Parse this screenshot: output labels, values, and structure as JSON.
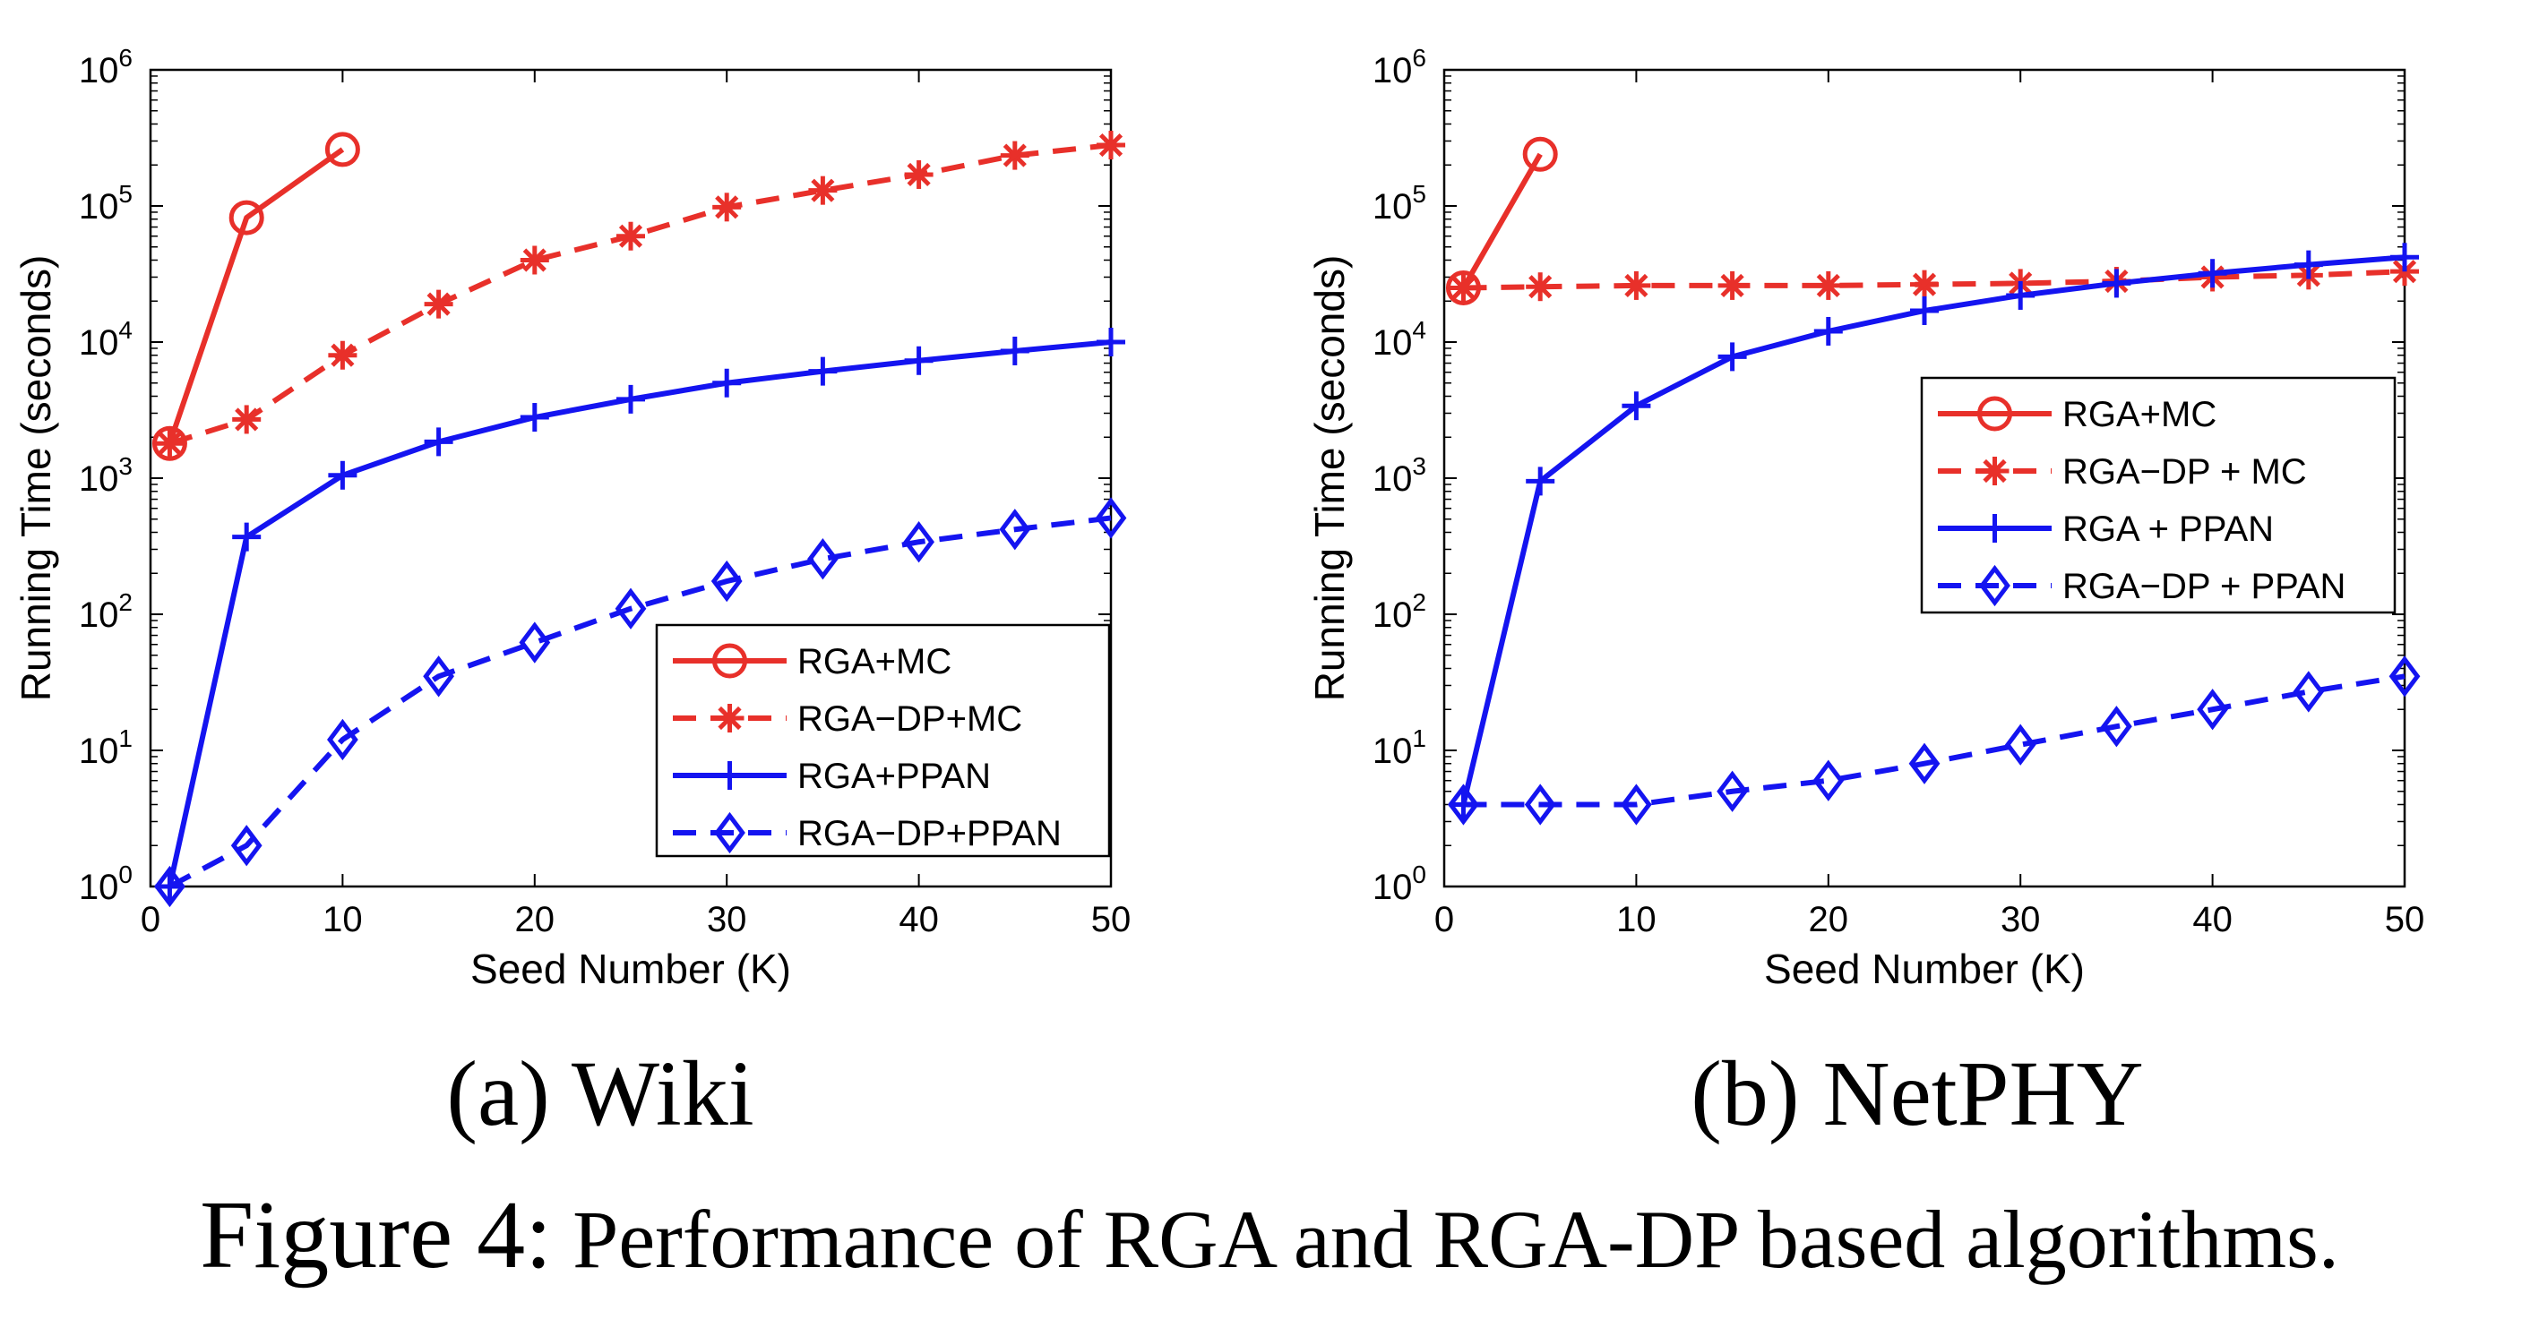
{
  "figure": {
    "caption_label": "Figure 4:",
    "caption_text": "Performance of RGA and RGA-DP based algorithms."
  },
  "colors": {
    "red": "#e8302a",
    "blue": "#1414f0"
  },
  "chart_data": [
    {
      "type": "line",
      "subcaption": "(a)  Wiki",
      "xlabel": "Seed Number (K)",
      "ylabel": "Running Time (seconds)",
      "xlim": [
        0,
        50
      ],
      "ylim": [
        1,
        1000000
      ],
      "y_scale": "log",
      "x_ticks": [
        0,
        10,
        20,
        30,
        40,
        50
      ],
      "y_ticks": [
        1,
        10,
        100,
        1000,
        10000,
        100000,
        1000000
      ],
      "legend_position": "lower-right",
      "grid": false,
      "series": [
        {
          "name": "RGA+MC",
          "color": "#e8302a",
          "dash": "solid",
          "marker": "circle",
          "x": [
            1,
            5,
            10
          ],
          "y": [
            1800,
            82000,
            260000
          ]
        },
        {
          "name": "RGA−DP+MC",
          "color": "#e8302a",
          "dash": "dashed",
          "marker": "asterisk",
          "x": [
            1,
            5,
            10,
            15,
            20,
            25,
            30,
            35,
            40,
            45,
            50
          ],
          "y": [
            1800,
            2700,
            8000,
            19000,
            40000,
            60000,
            98000,
            130000,
            170000,
            235000,
            280000
          ]
        },
        {
          "name": "RGA+PPAN",
          "color": "#1414f0",
          "dash": "solid",
          "marker": "plus",
          "x": [
            1,
            5,
            10,
            15,
            20,
            25,
            30,
            35,
            40,
            45,
            50
          ],
          "y": [
            1,
            370,
            1050,
            1850,
            2800,
            3800,
            5000,
            6100,
            7300,
            8600,
            10000
          ]
        },
        {
          "name": "RGA−DP+PPAN",
          "color": "#1414f0",
          "dash": "dashed",
          "marker": "diamond",
          "x": [
            1,
            5,
            10,
            15,
            20,
            25,
            30,
            35,
            40,
            45,
            50
          ],
          "y": [
            1,
            2,
            12,
            35,
            62,
            110,
            175,
            255,
            340,
            420,
            510
          ]
        }
      ]
    },
    {
      "type": "line",
      "subcaption": "(b)  NetPHY",
      "xlabel": "Seed Number (K)",
      "ylabel": "Running Time (seconds)",
      "xlim": [
        0,
        50
      ],
      "ylim": [
        1,
        1000000
      ],
      "y_scale": "log",
      "x_ticks": [
        0,
        10,
        20,
        30,
        40,
        50
      ],
      "y_ticks": [
        1,
        10,
        100,
        1000,
        10000,
        100000,
        1000000
      ],
      "legend_position": "center-right",
      "grid": false,
      "series": [
        {
          "name": "RGA+MC",
          "color": "#e8302a",
          "dash": "solid",
          "marker": "circle",
          "x": [
            1,
            5
          ],
          "y": [
            25000,
            240000
          ]
        },
        {
          "name": "RGA−DP + MC",
          "color": "#e8302a",
          "dash": "dashed",
          "marker": "asterisk",
          "x": [
            1,
            5,
            10,
            15,
            20,
            25,
            30,
            35,
            40,
            45,
            50
          ],
          "y": [
            25000,
            25500,
            26000,
            26000,
            26000,
            26500,
            27000,
            28000,
            30000,
            31000,
            33000
          ]
        },
        {
          "name": "RGA + PPAN",
          "color": "#1414f0",
          "dash": "solid",
          "marker": "plus",
          "x": [
            1,
            5,
            10,
            15,
            20,
            25,
            30,
            35,
            40,
            45,
            50
          ],
          "y": [
            4,
            950,
            3400,
            7800,
            12000,
            17000,
            22000,
            27000,
            32000,
            37000,
            42000
          ]
        },
        {
          "name": "RGA−DP + PPAN",
          "color": "#1414f0",
          "dash": "dashed",
          "marker": "diamond",
          "x": [
            1,
            5,
            10,
            15,
            20,
            25,
            30,
            35,
            40,
            45,
            50
          ],
          "y": [
            4,
            4,
            4,
            5,
            6,
            8,
            11,
            15,
            20,
            27,
            35
          ]
        }
      ]
    }
  ]
}
